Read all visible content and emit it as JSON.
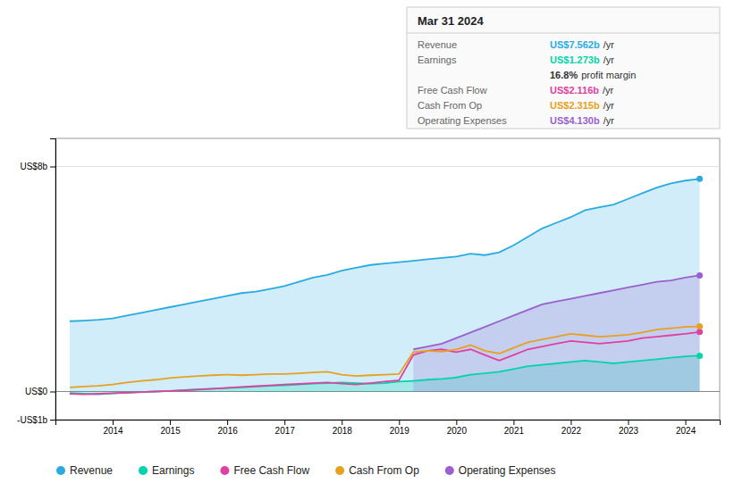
{
  "chart_data": {
    "type": "line",
    "title": "Mar 31 2024",
    "x": [
      2013.25,
      2013.5,
      2013.75,
      2014.0,
      2014.25,
      2014.5,
      2014.75,
      2015.0,
      2015.25,
      2015.5,
      2015.75,
      2016.0,
      2016.25,
      2016.5,
      2016.75,
      2017.0,
      2017.25,
      2017.5,
      2017.75,
      2018.0,
      2018.25,
      2018.5,
      2018.75,
      2019.0,
      2019.25,
      2019.5,
      2019.75,
      2020.0,
      2020.25,
      2020.5,
      2020.75,
      2021.0,
      2021.25,
      2021.5,
      2021.75,
      2022.0,
      2022.25,
      2022.5,
      2022.75,
      2023.0,
      2023.25,
      2023.5,
      2023.75,
      2024.0,
      2024.25
    ],
    "series": [
      {
        "name": "Revenue",
        "type": "area",
        "color": "#29abe2",
        "values": [
          2.5,
          2.52,
          2.55,
          2.6,
          2.7,
          2.8,
          2.9,
          3.0,
          3.1,
          3.2,
          3.3,
          3.4,
          3.5,
          3.55,
          3.65,
          3.75,
          3.9,
          4.05,
          4.15,
          4.3,
          4.4,
          4.5,
          4.55,
          4.6,
          4.65,
          4.7,
          4.75,
          4.8,
          4.9,
          4.85,
          4.95,
          5.2,
          5.5,
          5.8,
          6.0,
          6.2,
          6.45,
          6.55,
          6.65,
          6.85,
          7.05,
          7.25,
          7.4,
          7.5,
          7.562
        ]
      },
      {
        "name": "Earnings",
        "type": "area",
        "color": "#00d4aa",
        "values": [
          -0.05,
          -0.08,
          -0.1,
          -0.07,
          -0.04,
          -0.02,
          0.0,
          0.02,
          0.05,
          0.08,
          0.1,
          0.12,
          0.15,
          0.18,
          0.2,
          0.22,
          0.25,
          0.28,
          0.3,
          0.32,
          0.3,
          0.28,
          0.3,
          0.35,
          0.38,
          0.42,
          0.45,
          0.5,
          0.6,
          0.65,
          0.7,
          0.8,
          0.9,
          0.95,
          1.0,
          1.05,
          1.1,
          1.05,
          1.0,
          1.05,
          1.1,
          1.15,
          1.2,
          1.25,
          1.273
        ]
      },
      {
        "name": "Free Cash Flow",
        "type": "line",
        "color": "#e040a0",
        "values": [
          -0.08,
          -0.1,
          -0.08,
          -0.06,
          -0.04,
          -0.02,
          0.0,
          0.02,
          0.04,
          0.07,
          0.1,
          0.13,
          0.16,
          0.19,
          0.22,
          0.25,
          0.27,
          0.3,
          0.32,
          0.28,
          0.25,
          0.3,
          0.35,
          0.4,
          1.3,
          1.45,
          1.5,
          1.4,
          1.5,
          1.3,
          1.1,
          1.3,
          1.5,
          1.6,
          1.7,
          1.8,
          1.75,
          1.7,
          1.75,
          1.8,
          1.9,
          1.95,
          2.0,
          2.05,
          2.116
        ]
      },
      {
        "name": "Cash From Op",
        "type": "line",
        "color": "#e8a020",
        "values": [
          0.15,
          0.18,
          0.2,
          0.25,
          0.32,
          0.38,
          0.42,
          0.48,
          0.52,
          0.55,
          0.58,
          0.6,
          0.58,
          0.6,
          0.62,
          0.62,
          0.65,
          0.68,
          0.7,
          0.6,
          0.55,
          0.58,
          0.6,
          0.62,
          1.4,
          1.45,
          1.42,
          1.5,
          1.65,
          1.45,
          1.35,
          1.55,
          1.75,
          1.85,
          1.95,
          2.05,
          2.0,
          1.95,
          1.98,
          2.02,
          2.1,
          2.2,
          2.25,
          2.3,
          2.315
        ]
      },
      {
        "name": "Operating Expenses",
        "type": "area",
        "color": "#9b5fcf",
        "values": [
          null,
          null,
          null,
          null,
          null,
          null,
          null,
          null,
          null,
          null,
          null,
          null,
          null,
          null,
          null,
          null,
          null,
          null,
          null,
          null,
          null,
          null,
          null,
          null,
          1.5,
          1.6,
          1.7,
          1.9,
          2.1,
          2.3,
          2.5,
          2.7,
          2.9,
          3.1,
          3.2,
          3.3,
          3.4,
          3.5,
          3.6,
          3.7,
          3.8,
          3.9,
          3.95,
          4.05,
          4.13
        ]
      }
    ],
    "xlim": [
      2013.0,
      2024.6
    ],
    "xticks": [
      2014,
      2015,
      2016,
      2017,
      2018,
      2019,
      2020,
      2021,
      2022,
      2023,
      2024
    ],
    "ylim": [
      -1.0,
      9.0
    ],
    "yticks": [
      {
        "value": -1,
        "label": "-US$1b"
      },
      {
        "value": 0,
        "label": "US$0"
      },
      {
        "value": 8,
        "label": "US$8b"
      }
    ],
    "grid": true,
    "legend": "bottom",
    "annotations": [
      {
        "label": "Revenue",
        "text": "US$7.562b",
        "suffix": "/yr",
        "color": "#29abe2"
      },
      {
        "label": "Earnings",
        "text": "US$1.273b",
        "suffix": "/yr",
        "color": "#00d4aa"
      },
      {
        "text": "16.8%",
        "suffix": "profit margin",
        "color": "#333333"
      },
      {
        "label": "Free Cash Flow",
        "text": "US$2.116b",
        "suffix": "/yr",
        "color": "#e040a0"
      },
      {
        "label": "Cash From Op",
        "text": "US$2.315b",
        "suffix": "/yr",
        "color": "#e8a020"
      },
      {
        "label": "Operating Expenses",
        "text": "US$4.130b",
        "suffix": "/yr",
        "color": "#9b5fcf"
      }
    ]
  }
}
